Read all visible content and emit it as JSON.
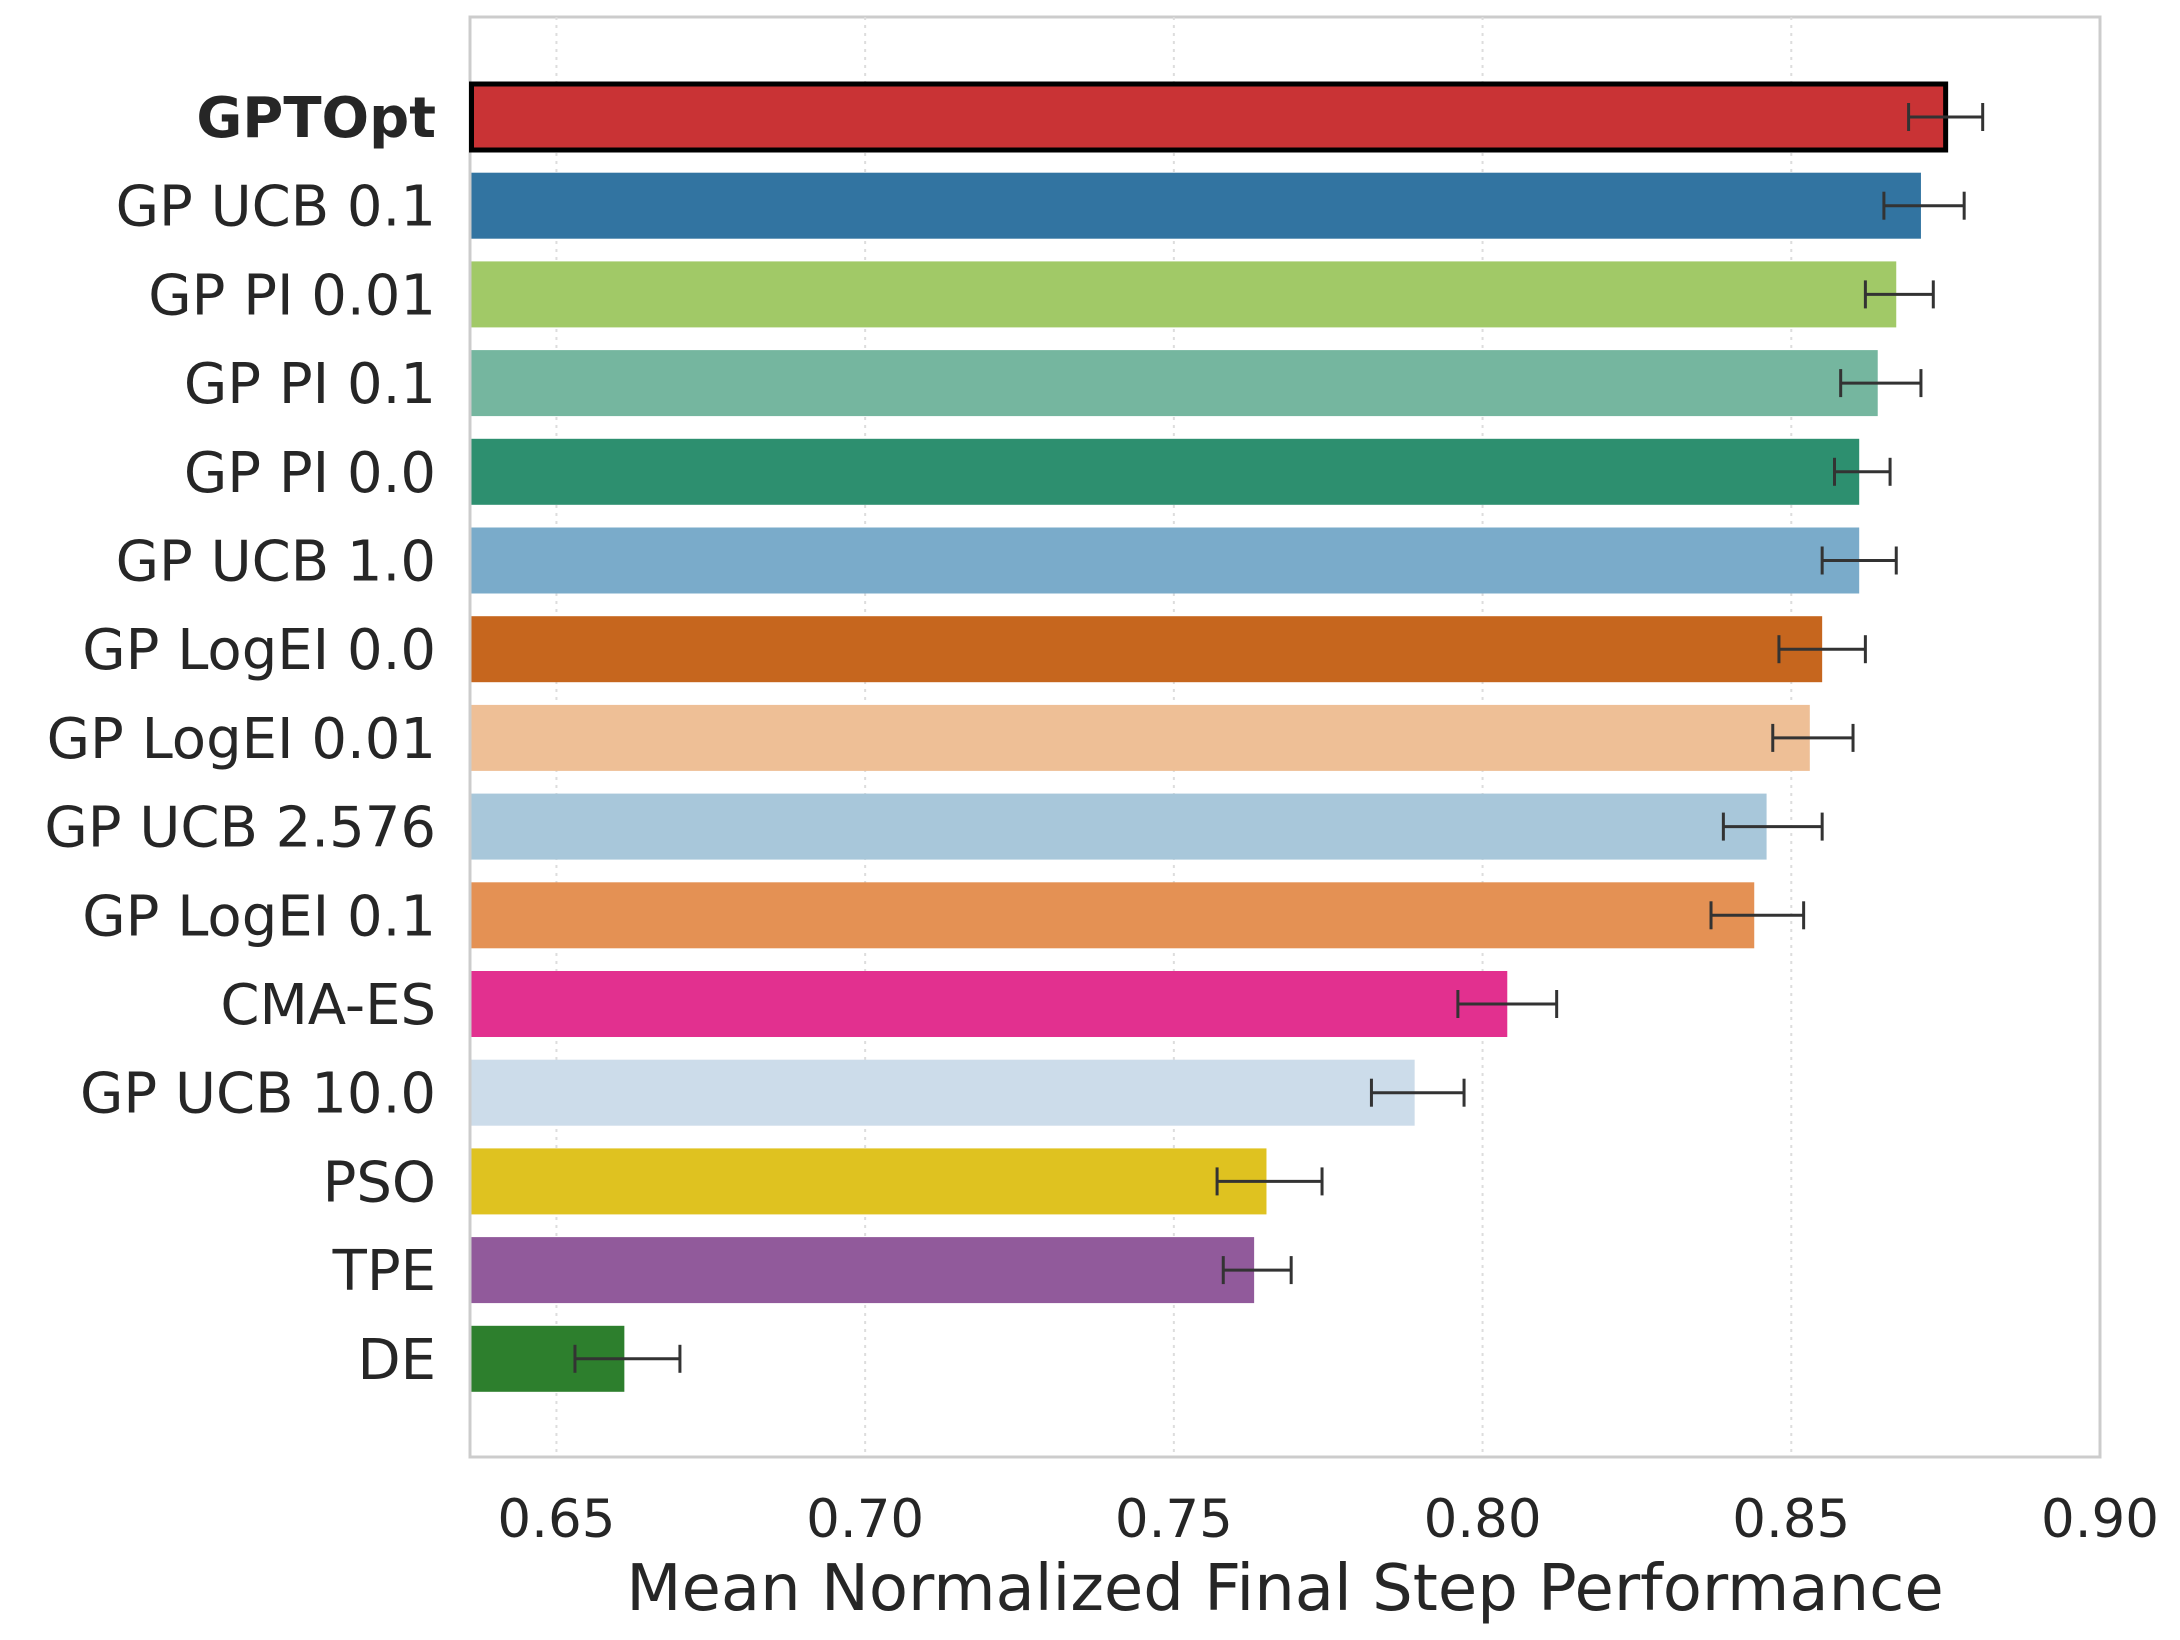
{
  "chart_data": {
    "type": "bar",
    "orientation": "horizontal",
    "title": "",
    "xlabel": "Mean Normalized Final Step Performance",
    "ylabel": "",
    "xlim": [
      0.636,
      0.9
    ],
    "xticks": [
      "0.65",
      "0.70",
      "0.75",
      "0.80",
      "0.85",
      "0.90"
    ],
    "grid": "vertical dotted",
    "highlight": "GPTOpt",
    "bars": [
      {
        "label": "GPTOpt",
        "value": 0.875,
        "err_low": 0.869,
        "err_high": 0.881,
        "color": "#c93335",
        "highlight": true
      },
      {
        "label": "GP UCB 0.1",
        "value": 0.871,
        "err_low": 0.865,
        "err_high": 0.878,
        "color": "#3274a1"
      },
      {
        "label": "GP PI 0.01",
        "value": 0.867,
        "err_low": 0.862,
        "err_high": 0.873,
        "color": "#a1c967"
      },
      {
        "label": "GP PI 0.1",
        "value": 0.864,
        "err_low": 0.858,
        "err_high": 0.871,
        "color": "#75b69f"
      },
      {
        "label": "GP PI 0.0",
        "value": 0.861,
        "err_low": 0.857,
        "err_high": 0.866,
        "color": "#2d8f6f"
      },
      {
        "label": "GP UCB 1.0",
        "value": 0.861,
        "err_low": 0.855,
        "err_high": 0.867,
        "color": "#7aabca"
      },
      {
        "label": "GP LogEI 0.0",
        "value": 0.855,
        "err_low": 0.848,
        "err_high": 0.862,
        "color": "#c6661e"
      },
      {
        "label": "GP LogEI 0.01",
        "value": 0.853,
        "err_low": 0.847,
        "err_high": 0.86,
        "color": "#eebf96"
      },
      {
        "label": "GP UCB 2.576",
        "value": 0.846,
        "err_low": 0.839,
        "err_high": 0.855,
        "color": "#a8c7da"
      },
      {
        "label": "GP LogEI 0.1",
        "value": 0.844,
        "err_low": 0.837,
        "err_high": 0.852,
        "color": "#e49154"
      },
      {
        "label": "CMA-ES",
        "value": 0.804,
        "err_low": 0.796,
        "err_high": 0.812,
        "color": "#e2308f"
      },
      {
        "label": "GP UCB 10.0",
        "value": 0.789,
        "err_low": 0.782,
        "err_high": 0.797,
        "color": "#ccdcea"
      },
      {
        "label": "PSO",
        "value": 0.765,
        "err_low": 0.757,
        "err_high": 0.774,
        "color": "#dfc220"
      },
      {
        "label": "TPE",
        "value": 0.763,
        "err_low": 0.758,
        "err_high": 0.769,
        "color": "#915a9b"
      },
      {
        "label": "DE",
        "value": 0.661,
        "err_low": 0.653,
        "err_high": 0.67,
        "color": "#2d7f2d"
      }
    ]
  }
}
